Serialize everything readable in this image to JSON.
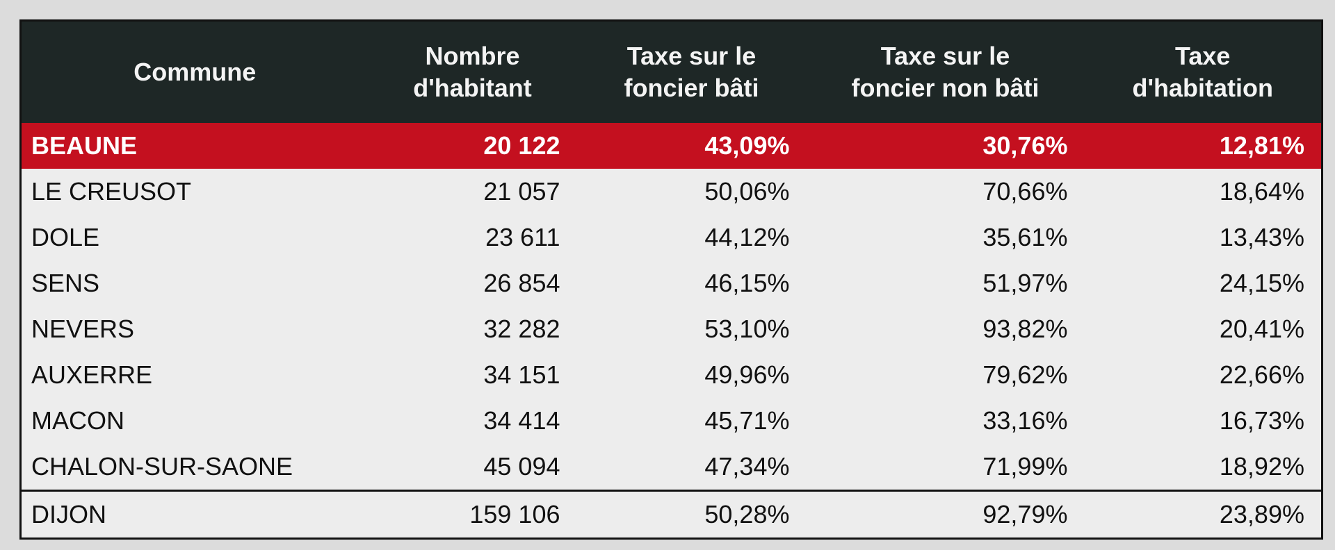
{
  "table": {
    "header": [
      [
        "Commune"
      ],
      [
        "Nombre",
        "d'habitant"
      ],
      [
        "Taxe sur le",
        "foncier bâti"
      ],
      [
        "Taxe sur le",
        "foncier non bâti"
      ],
      [
        "Taxe",
        "d'habitation"
      ]
    ],
    "rows": [
      [
        "BEAUNE",
        "20 122",
        "43,09%",
        "30,76%",
        "12,81%"
      ],
      [
        "LE CREUSOT",
        "21 057",
        "50,06%",
        "70,66%",
        "18,64%"
      ],
      [
        "DOLE",
        "23 611",
        "44,12%",
        "35,61%",
        "13,43%"
      ],
      [
        "SENS",
        "26 854",
        "46,15%",
        "51,97%",
        "24,15%"
      ],
      [
        "NEVERS",
        "32 282",
        "53,10%",
        "93,82%",
        "20,41%"
      ],
      [
        "AUXERRE",
        "34 151",
        "49,96%",
        "79,62%",
        "22,66%"
      ],
      [
        "MACON",
        "34 414",
        "45,71%",
        "33,16%",
        "16,73%"
      ],
      [
        "CHALON-SUR-SAONE",
        "45 094",
        "47,34%",
        "71,99%",
        "18,92%"
      ],
      [
        "DIJON",
        "159 106",
        "50,28%",
        "92,79%",
        "23,89%"
      ]
    ]
  }
}
